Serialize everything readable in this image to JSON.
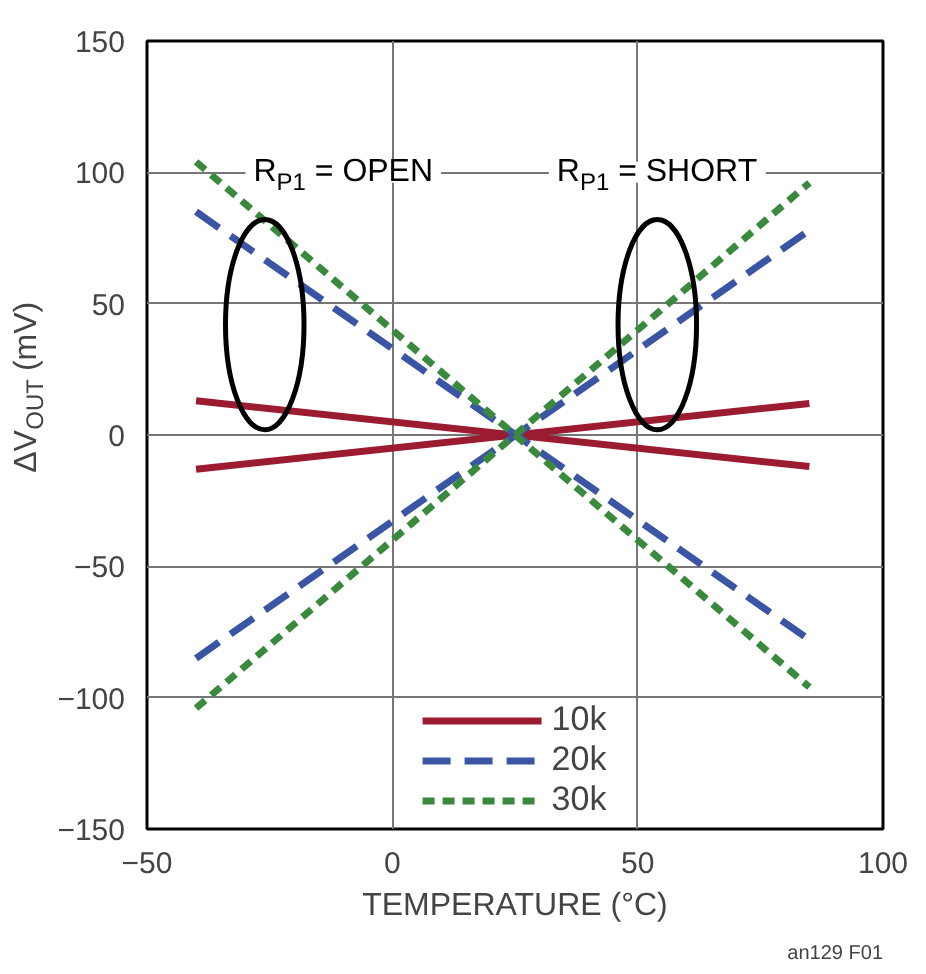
{
  "chart_data": {
    "type": "line",
    "xlabel": "TEMPERATURE (°C)",
    "ylabel": "ΔV$_{OUT}$ (mV)",
    "xlim": [
      -50,
      100
    ],
    "xticks": [
      -50,
      0,
      50,
      100
    ],
    "ylim": [
      -150,
      150
    ],
    "yticks": [
      -150,
      -100,
      -50,
      0,
      50,
      100,
      150
    ],
    "grid": true,
    "legend": "bottom",
    "marker": "none",
    "x": [
      -40,
      85
    ],
    "series": [
      {
        "name": "10k",
        "color": "#9b1b30",
        "values": [
          -13,
          12
        ],
        "line_style": "solid"
      },
      {
        "color": "#9b1b30",
        "values": [
          13,
          -12
        ],
        "line_style": "solid"
      },
      {
        "name": "20k",
        "color": "#3a55a4",
        "values": [
          -85,
          78
        ],
        "line_style": "dashed"
      },
      {
        "color": "#3a55a4",
        "values": [
          85,
          -78
        ],
        "line_style": "dashed"
      },
      {
        "name": "30k",
        "color": "#3a8a3e",
        "values": [
          -104,
          96
        ],
        "line_style": "dotted"
      },
      {
        "color": "#3a8a3e",
        "values": [
          104,
          -96
        ],
        "line_style": "dotted"
      }
    ],
    "annotations": [
      "R$_{P1}$ = OPEN",
      "R$_{P1}$ = SHORT",
      "an129 F01"
    ]
  }
}
